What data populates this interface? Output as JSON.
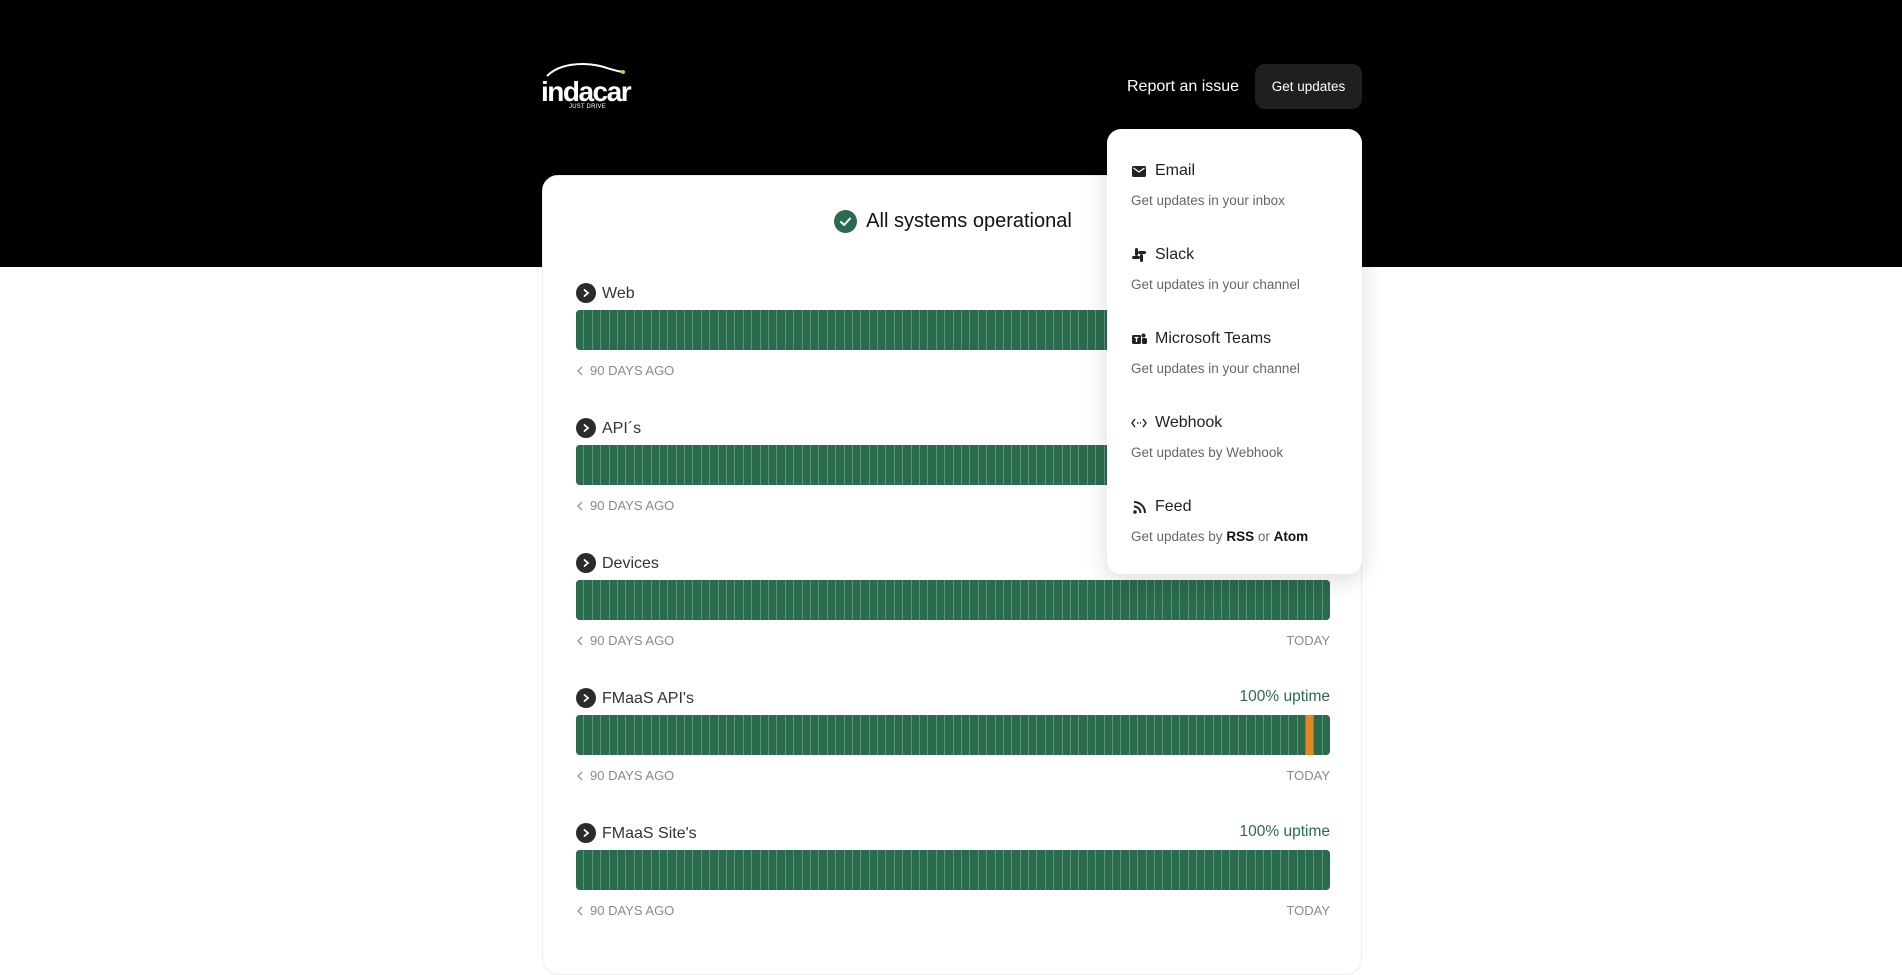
{
  "header": {
    "brand": "indacar",
    "tagline": "JUST DRIVE",
    "report_link": "Report an issue",
    "get_updates": "Get updates"
  },
  "status": {
    "text": "All systems operational",
    "color": "#2a6b4d"
  },
  "components": [
    {
      "name": "Web",
      "uptime": "",
      "left_label": "90 DAYS AGO",
      "right_label": "",
      "incident_day": null
    },
    {
      "name": "API´s",
      "uptime": "",
      "left_label": "90 DAYS AGO",
      "right_label": "",
      "incident_day": null
    },
    {
      "name": "Devices",
      "uptime": "",
      "left_label": "90 DAYS AGO",
      "right_label": "TODAY",
      "incident_day": null
    },
    {
      "name": "FMaaS API's",
      "uptime": "100% uptime",
      "left_label": "90 DAYS AGO",
      "right_label": "TODAY",
      "incident_day": 87
    },
    {
      "name": "FMaaS Site's",
      "uptime": "100% uptime",
      "left_label": "90 DAYS AGO",
      "right_label": "TODAY",
      "incident_day": null
    }
  ],
  "bar_count": 90,
  "colors": {
    "operational": "#2a6b4d",
    "incident": "#e28624"
  },
  "dropdown": {
    "items": [
      {
        "icon": "mail-icon",
        "title": "Email",
        "desc": "Get updates in your inbox"
      },
      {
        "icon": "slack-icon",
        "title": "Slack",
        "desc": "Get updates in your channel"
      },
      {
        "icon": "teams-icon",
        "title": "Microsoft Teams",
        "desc": "Get updates in your channel"
      },
      {
        "icon": "code-icon",
        "title": "Webhook",
        "desc": "Get updates by Webhook"
      },
      {
        "icon": "rss-icon",
        "title": "Feed",
        "desc_prefix": "Get updates by",
        "rss": "RSS",
        "or": "or",
        "atom": "Atom"
      }
    ]
  }
}
